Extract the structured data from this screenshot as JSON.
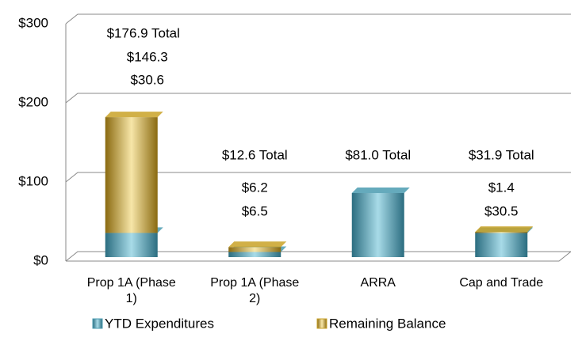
{
  "chart_data": {
    "type": "bar3d_stacked",
    "categories": [
      "Prop 1A (Phase 1)",
      "Prop 1A (Phase 2)",
      "ARRA",
      "Cap and Trade"
    ],
    "series": [
      {
        "name": "YTD Expenditures",
        "color": "#4a9bb0",
        "values": [
          30.6,
          6.5,
          81.0,
          30.5
        ],
        "value_labels": [
          "$30.6",
          "$6.5",
          null,
          "$30.5"
        ]
      },
      {
        "name": "Remaining Balance",
        "color": "#c9a227",
        "values": [
          146.3,
          6.2,
          null,
          1.4
        ],
        "value_labels": [
          "$146.3",
          "$6.2",
          null,
          "$1.4"
        ]
      }
    ],
    "totals": [
      176.9,
      12.6,
      81.0,
      31.9
    ],
    "total_labels": [
      "$176.9 Total",
      "$12.6 Total",
      "$81.0 Total",
      "$31.9 Total"
    ],
    "ylim": [
      0,
      300
    ],
    "yticks": [
      {
        "value": 0,
        "label": "$0"
      },
      {
        "value": 100,
        "label": "$100"
      },
      {
        "value": 200,
        "label": "$200"
      },
      {
        "value": 300,
        "label": "$300"
      }
    ],
    "grid": true,
    "legend": "bottom"
  }
}
